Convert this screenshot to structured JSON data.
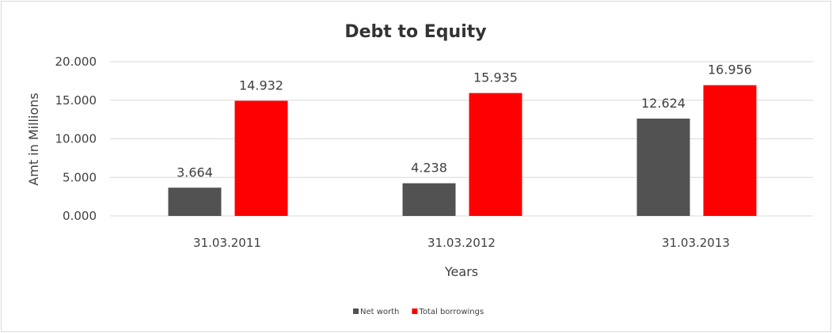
{
  "chart_data": {
    "type": "bar",
    "title": "Debt to Equity",
    "xlabel": "Years",
    "ylabel": "Amt in Millions",
    "categories": [
      "31.03.2011",
      "31.03.2012",
      "31.03.2013"
    ],
    "series": [
      {
        "name": "Net worth",
        "values": [
          3.664,
          4.238,
          12.624
        ],
        "labels": [
          "3.664",
          "4.238",
          "12.624"
        ],
        "color": "#525252"
      },
      {
        "name": "Total borrowings",
        "values": [
          14.932,
          15.935,
          16.956
        ],
        "labels": [
          "14.932",
          "15.935",
          "16.956"
        ],
        "color": "#ff0000"
      }
    ],
    "ylim": [
      0,
      20
    ],
    "yticks": [
      "0.000",
      "5.000",
      "10.000",
      "15.000",
      "20.000"
    ],
    "grid": true,
    "legend": "bottom"
  }
}
